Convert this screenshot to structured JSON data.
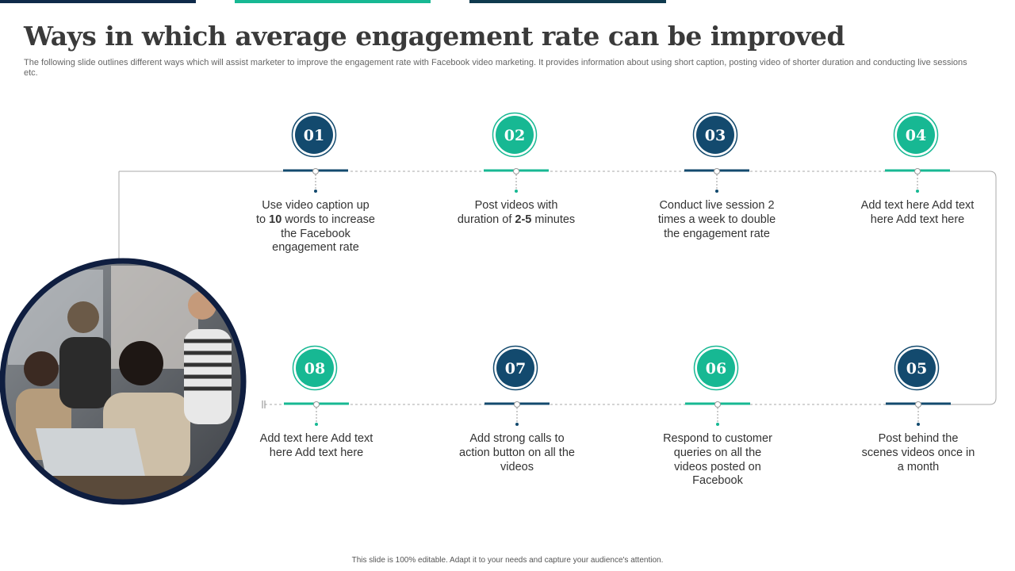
{
  "title": "Ways in which average engagement rate can be improved",
  "subtitle": "The following slide outlines different ways which will assist marketer to improve the engagement rate with Facebook video marketing. It provides information about using short caption, posting video of shorter duration and conducting live sessions etc.",
  "footer": "This slide is 100% editable. Adapt it to your needs and capture your audience's attention.",
  "steps": [
    {
      "number": "01",
      "color": "#134a6e",
      "text": [
        {
          "text": "Use video caption up to "
        },
        {
          "text": "10",
          "bold": true
        },
        {
          "text": " words to increase the Facebook engagement rate"
        }
      ]
    },
    {
      "number": "02",
      "color": "#17b893",
      "text": [
        {
          "text": "Post videos with duration of "
        },
        {
          "text": "2-5",
          "bold": true
        },
        {
          "text": " minutes"
        }
      ]
    },
    {
      "number": "03",
      "color": "#134a6e",
      "text": [
        {
          "text": "Conduct live session 2 times a week to double the engagement rate"
        }
      ]
    },
    {
      "number": "04",
      "color": "#17b893",
      "text": [
        {
          "text": "Add text here Add text here Add text here"
        }
      ]
    },
    {
      "number": "05",
      "color": "#134a6e",
      "text": [
        {
          "text": "Post behind the scenes videos once in a month"
        }
      ]
    },
    {
      "number": "06",
      "color": "#17b893",
      "text": [
        {
          "text": "Respond to customer queries on all the videos posted on Facebook"
        }
      ]
    },
    {
      "number": "07",
      "color": "#134a6e",
      "text": [
        {
          "text": "Add strong calls to action button on all the videos"
        }
      ]
    },
    {
      "number": "08",
      "color": "#17b893",
      "text": [
        {
          "text": "Add text here Add text here Add text here"
        }
      ]
    }
  ]
}
